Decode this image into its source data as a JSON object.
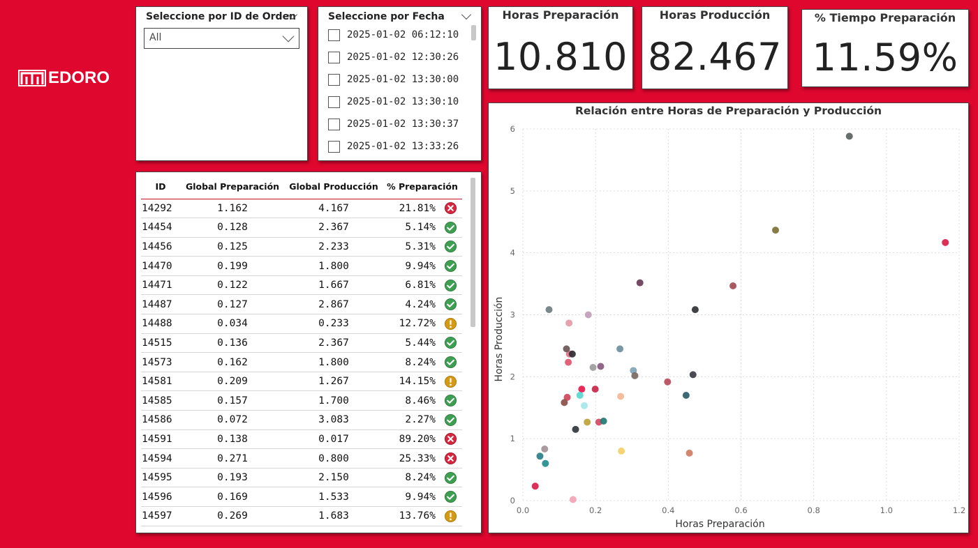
{
  "brand": {
    "logo_text": "EDORO"
  },
  "slicer_id": {
    "title": "Seleccione por ID de Orden",
    "selected": "All"
  },
  "slicer_fecha": {
    "title": "Seleccione por Fecha",
    "options": [
      "2025-01-02 06:12:10",
      "2025-01-02 12:30:26",
      "2025-01-02 13:30:00",
      "2025-01-02 13:30:10",
      "2025-01-02 13:30:37",
      "2025-01-02 13:33:26"
    ]
  },
  "kpis": [
    {
      "title": "Horas Preparación",
      "value": "10.810"
    },
    {
      "title": "Horas Producción",
      "value": "82.467"
    },
    {
      "title": "% Tiempo Preparación",
      "value": "11.59%"
    }
  ],
  "table": {
    "headers": [
      "ID",
      "Global Preparación",
      "Global Producción",
      "% Preparación"
    ],
    "rows": [
      {
        "id": "14292",
        "prep": "1.162",
        "prod": "4.167",
        "pct": "21.81%",
        "status": "error"
      },
      {
        "id": "14454",
        "prep": "0.128",
        "prod": "2.367",
        "pct": "5.14%",
        "status": "ok"
      },
      {
        "id": "14456",
        "prep": "0.125",
        "prod": "2.233",
        "pct": "5.31%",
        "status": "ok"
      },
      {
        "id": "14470",
        "prep": "0.199",
        "prod": "1.800",
        "pct": "9.94%",
        "status": "ok"
      },
      {
        "id": "14471",
        "prep": "0.122",
        "prod": "1.667",
        "pct": "6.81%",
        "status": "ok"
      },
      {
        "id": "14487",
        "prep": "0.127",
        "prod": "2.867",
        "pct": "4.24%",
        "status": "ok"
      },
      {
        "id": "14488",
        "prep": "0.034",
        "prod": "0.233",
        "pct": "12.72%",
        "status": "warning"
      },
      {
        "id": "14515",
        "prep": "0.136",
        "prod": "2.367",
        "pct": "5.44%",
        "status": "ok"
      },
      {
        "id": "14573",
        "prep": "0.162",
        "prod": "1.800",
        "pct": "8.24%",
        "status": "ok"
      },
      {
        "id": "14581",
        "prep": "0.209",
        "prod": "1.267",
        "pct": "14.15%",
        "status": "warning"
      },
      {
        "id": "14585",
        "prep": "0.157",
        "prod": "1.700",
        "pct": "8.46%",
        "status": "ok"
      },
      {
        "id": "14586",
        "prep": "0.072",
        "prod": "3.083",
        "pct": "2.27%",
        "status": "ok"
      },
      {
        "id": "14591",
        "prep": "0.138",
        "prod": "0.017",
        "pct": "89.20%",
        "status": "error"
      },
      {
        "id": "14594",
        "prep": "0.271",
        "prod": "0.800",
        "pct": "25.33%",
        "status": "error"
      },
      {
        "id": "14595",
        "prep": "0.193",
        "prod": "2.150",
        "pct": "8.24%",
        "status": "ok"
      },
      {
        "id": "14596",
        "prep": "0.169",
        "prod": "1.533",
        "pct": "9.94%",
        "status": "ok"
      },
      {
        "id": "14597",
        "prep": "0.269",
        "prod": "1.683",
        "pct": "13.76%",
        "status": "warning"
      }
    ]
  },
  "status_colors": {
    "ok": "#3E9E52",
    "warning": "#D49A16",
    "error": "#D7263D"
  },
  "chart_data": {
    "type": "scatter",
    "title": "Relación entre Horas de Preparación y Producción",
    "xlabel": "Horas Preparación",
    "ylabel": "Horas Producción",
    "xlim": [
      0,
      1.2
    ],
    "ylim": [
      0,
      6
    ],
    "xticks": [
      "0.0",
      "0.2",
      "0.4",
      "0.6",
      "0.8",
      "1.0",
      "1.2"
    ],
    "yticks": [
      "0",
      "1",
      "2",
      "3",
      "4",
      "5",
      "6"
    ],
    "grid": true,
    "points": [
      {
        "x": 1.162,
        "y": 4.167,
        "color": "#D81E4A"
      },
      {
        "x": 0.128,
        "y": 2.367,
        "color": "#E2708A"
      },
      {
        "x": 0.125,
        "y": 2.233,
        "color": "#E0566E"
      },
      {
        "x": 0.199,
        "y": 1.8,
        "color": "#C8284A"
      },
      {
        "x": 0.122,
        "y": 1.667,
        "color": "#D1445C"
      },
      {
        "x": 0.127,
        "y": 2.867,
        "color": "#E39AA8"
      },
      {
        "x": 0.034,
        "y": 0.233,
        "color": "#D81E4A"
      },
      {
        "x": 0.136,
        "y": 2.367,
        "color": "#2B2E33"
      },
      {
        "x": 0.162,
        "y": 1.8,
        "color": "#E8184A"
      },
      {
        "x": 0.209,
        "y": 1.267,
        "color": "#D6485F"
      },
      {
        "x": 0.157,
        "y": 1.7,
        "color": "#58D6CF"
      },
      {
        "x": 0.072,
        "y": 3.083,
        "color": "#6E7E82"
      },
      {
        "x": 0.138,
        "y": 0.017,
        "color": "#F2A3B5"
      },
      {
        "x": 0.271,
        "y": 0.8,
        "color": "#F5CF67"
      },
      {
        "x": 0.193,
        "y": 2.15,
        "color": "#9C9C9C"
      },
      {
        "x": 0.169,
        "y": 1.533,
        "color": "#A6E6EA"
      },
      {
        "x": 0.269,
        "y": 1.683,
        "color": "#F6B596"
      },
      {
        "x": 0.898,
        "y": 5.883,
        "color": "#5A6063"
      },
      {
        "x": 0.695,
        "y": 4.367,
        "color": "#7E7136"
      },
      {
        "x": 0.578,
        "y": 3.467,
        "color": "#A34A55"
      },
      {
        "x": 0.322,
        "y": 3.517,
        "color": "#6A3B56"
      },
      {
        "x": 0.474,
        "y": 3.083,
        "color": "#2E3135"
      },
      {
        "x": 0.18,
        "y": 3.0,
        "color": "#BFA0B8"
      },
      {
        "x": 0.12,
        "y": 2.45,
        "color": "#6B5555"
      },
      {
        "x": 0.267,
        "y": 2.45,
        "color": "#6D8F9E"
      },
      {
        "x": 0.214,
        "y": 2.167,
        "color": "#8A5A80"
      },
      {
        "x": 0.304,
        "y": 2.1,
        "color": "#7FA4B7"
      },
      {
        "x": 0.308,
        "y": 2.017,
        "color": "#7A6A60"
      },
      {
        "x": 0.468,
        "y": 2.033,
        "color": "#3A3E42"
      },
      {
        "x": 0.398,
        "y": 1.917,
        "color": "#B94A5C"
      },
      {
        "x": 0.449,
        "y": 1.7,
        "color": "#2A5D6A"
      },
      {
        "x": 0.114,
        "y": 1.583,
        "color": "#8A4E48"
      },
      {
        "x": 0.177,
        "y": 1.267,
        "color": "#BFA23A"
      },
      {
        "x": 0.222,
        "y": 1.283,
        "color": "#1F7A74"
      },
      {
        "x": 0.145,
        "y": 1.15,
        "color": "#333639"
      },
      {
        "x": 0.06,
        "y": 0.833,
        "color": "#A49298"
      },
      {
        "x": 0.047,
        "y": 0.717,
        "color": "#2B7F8A"
      },
      {
        "x": 0.062,
        "y": 0.6,
        "color": "#238C8E"
      },
      {
        "x": 0.458,
        "y": 0.767,
        "color": "#CF7C63"
      }
    ]
  }
}
